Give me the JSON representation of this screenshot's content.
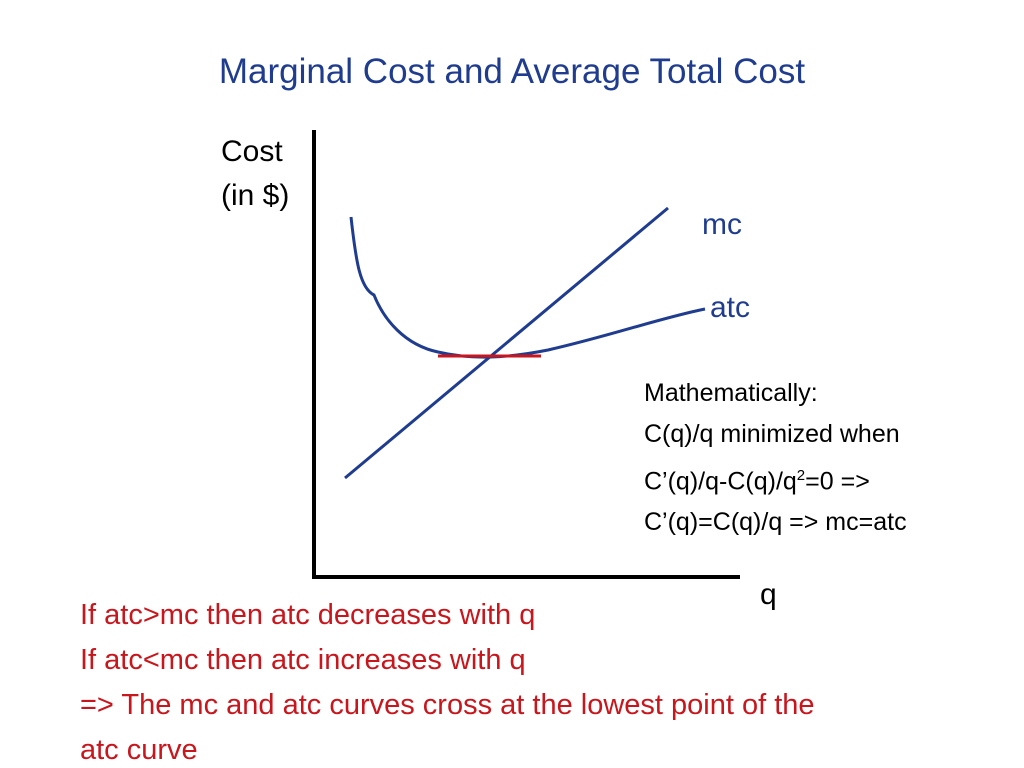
{
  "slide": {
    "title": "Marginal Cost and Average Total Cost"
  },
  "diagram": {
    "y_axis_label_line1": "Cost",
    "y_axis_label_line2": "(in $)",
    "x_axis_label": "q",
    "mc_label": "mc",
    "atc_label": "atc",
    "colors": {
      "curves": "#1f3c8f",
      "tangent": "#c8161d",
      "axes": "#000000"
    }
  },
  "math_note": {
    "line1": "Mathematically:",
    "line2": "C(q)/q minimized when",
    "line3_pre": "C’(q)/q-C(q)/q",
    "line3_sup": "2",
    "line3_post": "=0 =>",
    "line4": "C’(q)=C(q)/q => mc=atc"
  },
  "conclusion": {
    "line1": "If atc>mc then atc decreases with q",
    "line2": "If atc<mc then atc increases with q",
    "line3": "=> The mc and atc curves cross at the lowest point of the",
    "line4": "atc curve"
  }
}
